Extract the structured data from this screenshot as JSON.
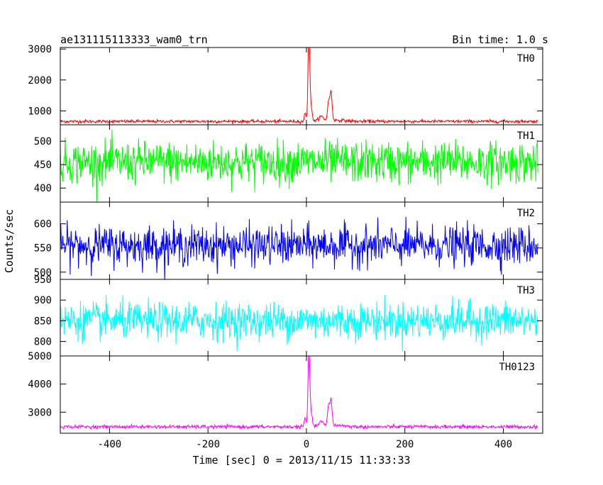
{
  "header": {
    "left_title": "ae131115113333_wam0_trn",
    "right_title": "Bin time: 1.0 s"
  },
  "chart_data": {
    "type": "line",
    "xlabel": "Time [sec] 0 = 2013/11/15 11:33:33",
    "ylabel": "Counts/sec",
    "xlim": [
      -500,
      480
    ],
    "xticks": [
      -400,
      -200,
      0,
      200,
      400
    ],
    "grid": false,
    "panels": [
      {
        "name": "TH0",
        "color": "#ff0000",
        "ylim": [
          550,
          3050
        ],
        "yticks": [
          1000,
          2000,
          3000
        ],
        "baseline": 660,
        "noise": 25,
        "peaks": [
          {
            "t": -3,
            "height": 250,
            "width": 1.5
          },
          {
            "t": 5,
            "height": 2700,
            "width": 1.6
          },
          {
            "t": 7,
            "height": 650,
            "width": 3.5
          },
          {
            "t": 30,
            "height": 160,
            "width": 5
          },
          {
            "t": 45,
            "height": 600,
            "width": 2.2
          },
          {
            "t": 50,
            "height": 900,
            "width": 2.2
          },
          {
            "t": 65,
            "height": 40,
            "width": 15
          }
        ]
      },
      {
        "name": "TH1",
        "color": "#00ff00",
        "ylim": [
          370,
          535
        ],
        "yticks": [
          400,
          450,
          500
        ],
        "baseline": 455,
        "noise": 22,
        "peaks": []
      },
      {
        "name": "TH2",
        "color": "#0000ff",
        "ylim": [
          485,
          645
        ],
        "yticks": [
          500,
          550,
          600
        ],
        "baseline": 555,
        "noise": 20,
        "peaks": []
      },
      {
        "name": "TH3",
        "color": "#00ffff",
        "ylim": [
          765,
          950
        ],
        "yticks": [
          800,
          850,
          900,
          950
        ],
        "baseline": 850,
        "noise": 22,
        "peaks": []
      },
      {
        "name": "TH0123",
        "color": "#ff00ff",
        "ylim": [
          2250,
          5000
        ],
        "yticks": [
          3000,
          4000,
          5000
        ],
        "baseline": 2480,
        "noise": 30,
        "peaks": [
          {
            "t": -3,
            "height": 300,
            "width": 1.5
          },
          {
            "t": 5,
            "height": 2400,
            "width": 1.6
          },
          {
            "t": 7,
            "height": 700,
            "width": 3.5
          },
          {
            "t": 30,
            "height": 180,
            "width": 5
          },
          {
            "t": 45,
            "height": 700,
            "width": 2.2
          },
          {
            "t": 50,
            "height": 900,
            "width": 2.2
          },
          {
            "t": 65,
            "height": 50,
            "width": 15
          }
        ]
      }
    ]
  }
}
